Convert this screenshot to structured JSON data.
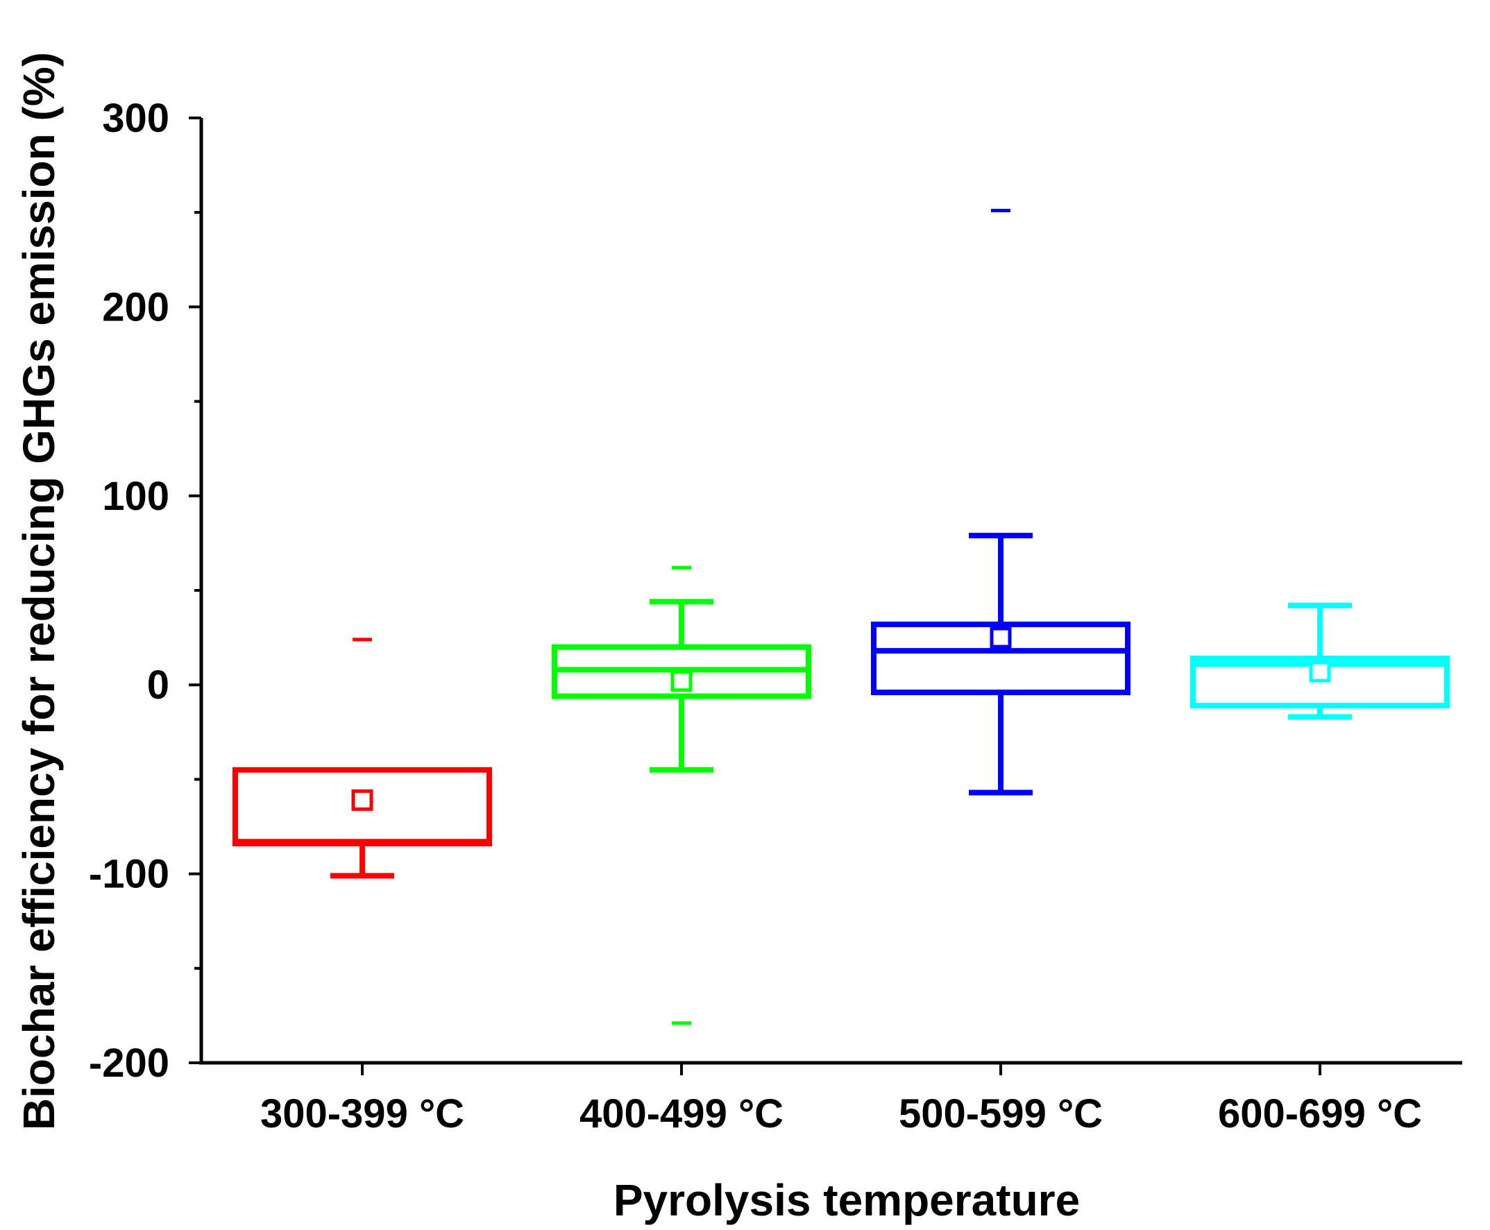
{
  "chart_data": {
    "type": "box",
    "title": "",
    "xlabel": "Pyrolysis temperature",
    "ylabel": "Biochar efficiency for reducing GHGs emission (%)",
    "ylim": [
      -200,
      300
    ],
    "y_ticks": [
      -200,
      -100,
      0,
      100,
      200,
      300
    ],
    "y_tick_labels": [
      "-200",
      "-100",
      "0",
      "100",
      "200",
      "300"
    ],
    "grid": false,
    "categories": [
      "300-399 °C",
      "400-499 °C",
      "500-599 °C",
      "600-699 °C"
    ],
    "series": [
      {
        "name": "300-399 °C",
        "color": "#ff0000",
        "whisker_low": -101,
        "q1": -84,
        "median": -83,
        "q3": -45,
        "whisker_high": -45,
        "mean": -61,
        "outliers": [
          24
        ]
      },
      {
        "name": "400-499 °C",
        "color": "#00ff00",
        "whisker_low": -45,
        "q1": -6,
        "median": 8,
        "q3": 20,
        "whisker_high": 44,
        "mean": 2,
        "outliers": [
          62,
          -179
        ]
      },
      {
        "name": "500-599 °C",
        "color": "#0000ff",
        "whisker_low": -57,
        "q1": -4,
        "median": 18,
        "q3": 32,
        "whisker_high": 79,
        "mean": 25,
        "outliers": [
          251
        ]
      },
      {
        "name": "600-699 °C",
        "color": "#00ffff",
        "whisker_low": -17,
        "q1": -11,
        "median": 11,
        "q3": 14,
        "whisker_high": 42,
        "mean": 7,
        "outliers": []
      }
    ]
  }
}
